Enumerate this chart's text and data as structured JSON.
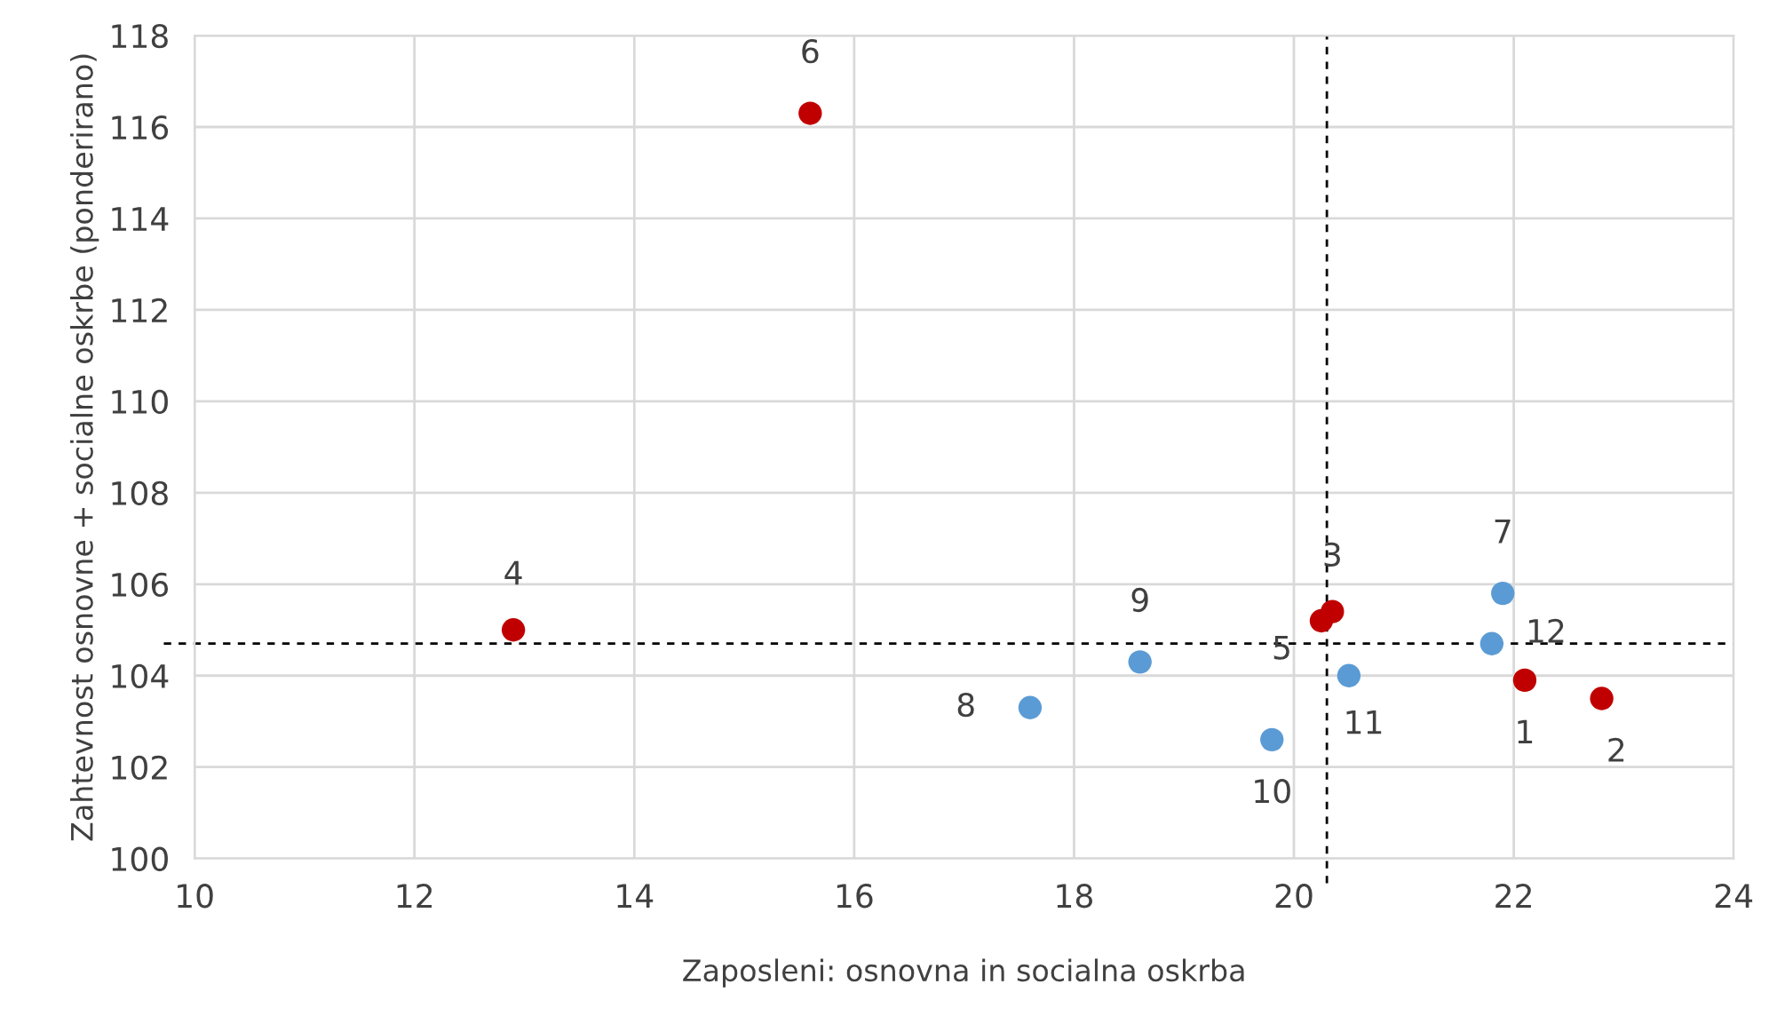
{
  "chart_data": {
    "type": "scatter",
    "xlabel": "Zaposleni: osnovna in socialna oskrba",
    "ylabel": "Zahtevnost osnovne + socialne oskrbe (ponderirano)",
    "series": [
      {
        "color": "#c00000",
        "x": [
          22.1,
          22.8,
          20.35,
          12.9,
          20.25,
          15.6
        ],
        "values": [
          103.9,
          103.5,
          105.4,
          105.0,
          105.2,
          116.3
        ]
      },
      {
        "color": "#5b9bd5",
        "x": [
          21.9,
          17.6,
          18.6,
          19.8,
          20.5,
          21.8
        ],
        "values": [
          105.8,
          103.3,
          104.3,
          102.6,
          104.0,
          104.7
        ]
      }
    ],
    "xlim": [
      10,
      24
    ],
    "xticks": [
      10,
      12,
      14,
      16,
      18,
      20,
      22,
      24
    ],
    "ylim": [
      100,
      118
    ],
    "yticks": [
      100,
      102,
      104,
      106,
      108,
      110,
      112,
      114,
      116,
      118
    ],
    "grid": true,
    "marker": "circle",
    "ref_lines": [
      {
        "axis": "x",
        "value": 20.3,
        "color": "#000000",
        "line_style": "dashed"
      },
      {
        "axis": "y",
        "value": 104.7,
        "color": "#000000",
        "line_style": "dashed"
      }
    ],
    "annotations": [
      {
        "text": "1",
        "x": 22.1,
        "y": 103.9
      },
      {
        "text": "2",
        "x": 22.8,
        "y": 103.5
      },
      {
        "text": "3",
        "x": 20.35,
        "y": 105.4
      },
      {
        "text": "4",
        "x": 12.9,
        "y": 105.0
      },
      {
        "text": "5",
        "x": 20.25,
        "y": 105.2
      },
      {
        "text": "6",
        "x": 15.6,
        "y": 116.3
      },
      {
        "text": "7",
        "x": 21.9,
        "y": 105.8
      },
      {
        "text": "8",
        "x": 17.6,
        "y": 103.3
      },
      {
        "text": "9",
        "x": 18.6,
        "y": 104.3
      },
      {
        "text": "10",
        "x": 19.8,
        "y": 102.6
      },
      {
        "text": "11",
        "x": 20.5,
        "y": 104.0
      },
      {
        "text": "12",
        "x": 21.8,
        "y": 104.7
      }
    ]
  }
}
